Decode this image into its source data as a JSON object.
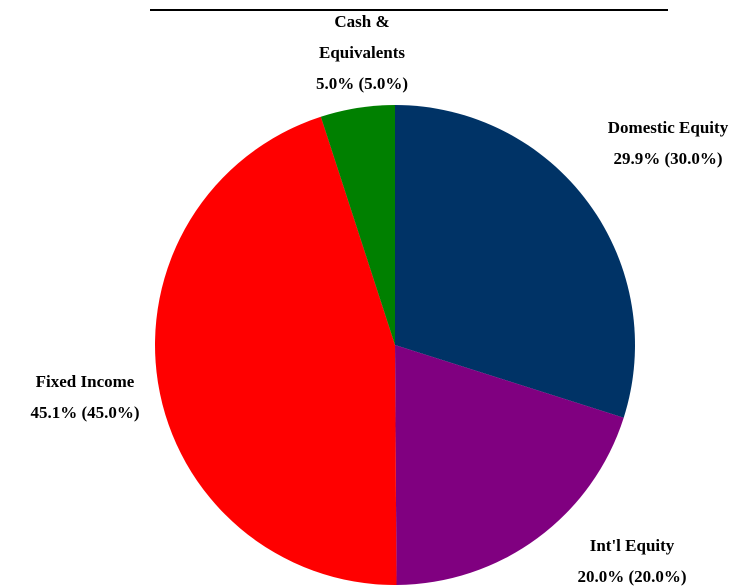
{
  "chart_data": {
    "type": "pie",
    "categories": [
      "Domestic Equity",
      "Int'l Equity",
      "Fixed Income",
      "Cash & Equivalents"
    ],
    "values": [
      29.9,
      20.0,
      45.1,
      5.0
    ],
    "value_labels": [
      "29.9% (30.0%)",
      "20.0% (20.0%)",
      "45.1% (45.0%)",
      "5.0% (5.0%)"
    ],
    "colors": [
      "#003366",
      "#800080",
      "#ff0000",
      "#008000"
    ]
  }
}
